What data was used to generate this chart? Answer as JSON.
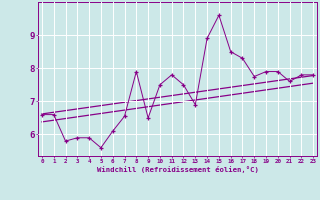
{
  "x_data": [
    0,
    1,
    2,
    3,
    4,
    5,
    6,
    7,
    8,
    9,
    10,
    11,
    12,
    13,
    14,
    15,
    16,
    17,
    18,
    19,
    20,
    21,
    22,
    23
  ],
  "y_scatter": [
    6.6,
    6.6,
    5.8,
    5.9,
    5.9,
    5.6,
    6.1,
    6.55,
    7.9,
    6.5,
    7.5,
    7.8,
    7.5,
    6.9,
    8.9,
    9.6,
    8.5,
    8.3,
    7.75,
    7.9,
    7.9,
    7.6,
    7.8,
    7.8
  ],
  "line1_x": [
    0,
    23
  ],
  "line1_y": [
    6.62,
    7.78
  ],
  "line2_x": [
    0,
    23
  ],
  "line2_y": [
    6.38,
    7.55
  ],
  "bg_color": "#cce8e8",
  "line_color": "#880088",
  "grid_color": "#ffffff",
  "xlabel": "Windchill (Refroidissement éolien,°C)",
  "ylabel_ticks": [
    6,
    7,
    8,
    9
  ],
  "xlim": [
    -0.3,
    23.3
  ],
  "ylim": [
    5.35,
    10.0
  ],
  "figsize": [
    3.2,
    2.0
  ],
  "dpi": 100
}
